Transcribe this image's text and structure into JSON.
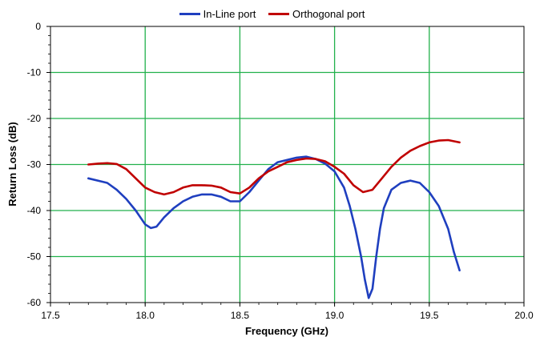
{
  "chart_data": {
    "type": "line",
    "title": "",
    "xlabel": "Frequency (GHz)",
    "ylabel": "Return Loss (dB)",
    "xlim": [
      17.5,
      20.0
    ],
    "ylim": [
      -60,
      0
    ],
    "x_ticks": [
      "17.5",
      "18.0",
      "18.5",
      "19.0",
      "19.5",
      "20.0"
    ],
    "y_ticks": [
      "0",
      "-10",
      "-20",
      "-30",
      "-40",
      "-50",
      "-60"
    ],
    "grid": true,
    "legend_position": "top-center",
    "series": [
      {
        "name": "In-Line port",
        "color": "#1f3fbf",
        "x": [
          17.7,
          17.8,
          17.85,
          17.9,
          17.95,
          18.0,
          18.03,
          18.06,
          18.1,
          18.15,
          18.2,
          18.25,
          18.3,
          18.35,
          18.4,
          18.45,
          18.5,
          18.55,
          18.6,
          18.65,
          18.7,
          18.75,
          18.8,
          18.85,
          18.9,
          18.95,
          19.0,
          19.05,
          19.08,
          19.11,
          19.14,
          19.16,
          19.18,
          19.2,
          19.22,
          19.24,
          19.26,
          19.3,
          19.35,
          19.4,
          19.45,
          19.5,
          19.55,
          19.6,
          19.63,
          19.66
        ],
        "y": [
          -33.0,
          -34.0,
          -35.5,
          -37.5,
          -40.0,
          -43.0,
          -43.8,
          -43.5,
          -41.5,
          -39.5,
          -38.0,
          -37.0,
          -36.5,
          -36.5,
          -37.0,
          -38.0,
          -38.0,
          -36.0,
          -33.5,
          -31.0,
          -29.5,
          -29.0,
          -28.5,
          -28.3,
          -28.8,
          -29.8,
          -31.5,
          -35.0,
          -39.0,
          -44.0,
          -50.0,
          -55.0,
          -59.0,
          -57.0,
          -50.0,
          -44.0,
          -39.5,
          -35.5,
          -34.0,
          -33.5,
          -34.0,
          -36.0,
          -39.0,
          -44.0,
          -49.0,
          -53.0
        ]
      },
      {
        "name": "Orthogonal port",
        "color": "#c00000",
        "x": [
          17.7,
          17.75,
          17.8,
          17.85,
          17.9,
          17.95,
          18.0,
          18.05,
          18.1,
          18.15,
          18.2,
          18.25,
          18.3,
          18.35,
          18.4,
          18.45,
          18.5,
          18.55,
          18.6,
          18.65,
          18.7,
          18.75,
          18.8,
          18.85,
          18.9,
          18.95,
          19.0,
          19.05,
          19.1,
          19.15,
          19.2,
          19.25,
          19.3,
          19.35,
          19.4,
          19.45,
          19.5,
          19.55,
          19.6,
          19.66
        ],
        "y": [
          -30.0,
          -29.8,
          -29.7,
          -29.9,
          -31.0,
          -33.0,
          -35.0,
          -36.0,
          -36.5,
          -36.0,
          -35.0,
          -34.5,
          -34.5,
          -34.6,
          -35.0,
          -36.0,
          -36.3,
          -35.0,
          -33.0,
          -31.5,
          -30.5,
          -29.5,
          -29.0,
          -28.7,
          -28.8,
          -29.3,
          -30.5,
          -32.0,
          -34.5,
          -36.0,
          -35.5,
          -33.0,
          -30.5,
          -28.5,
          -27.0,
          -26.0,
          -25.2,
          -24.8,
          -24.7,
          -25.2
        ]
      }
    ]
  }
}
